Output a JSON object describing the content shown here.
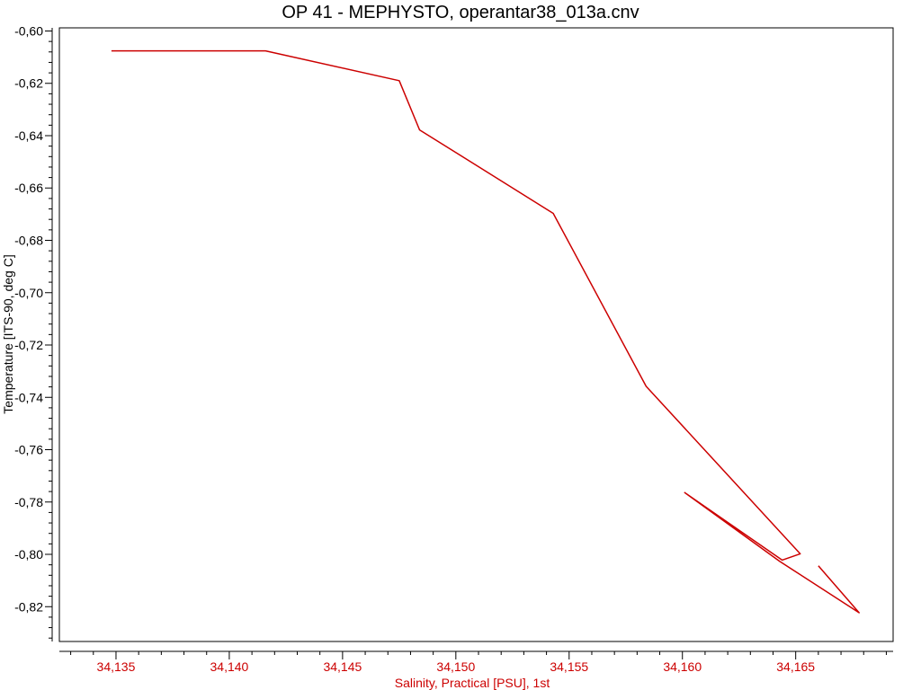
{
  "chart_data": {
    "type": "line",
    "title": "OP 41 - MEPHYSTO, operantar38_013a.cnv",
    "xlabel": "Salinity, Practical [PSU], 1st",
    "ylabel": "Temperature [ITS-90, deg C]",
    "xlim": [
      34.1325,
      34.1693
    ],
    "ylim": [
      -0.8333,
      -0.5988
    ],
    "x_ticks": [
      34.135,
      34.14,
      34.145,
      34.15,
      34.155,
      34.16,
      34.165
    ],
    "x_tick_labels": [
      "34,135",
      "34,140",
      "34,145",
      "34,150",
      "34,155",
      "34,160",
      "34,165"
    ],
    "y_ticks": [
      -0.6,
      -0.62,
      -0.64,
      -0.66,
      -0.68,
      -0.7,
      -0.72,
      -0.74,
      -0.76,
      -0.78,
      -0.8,
      -0.82
    ],
    "y_tick_labels": [
      "-0,60",
      "-0,62",
      "-0,64",
      "-0,66",
      "-0,68",
      "-0,70",
      "-0,72",
      "-0,74",
      "-0,76",
      "-0,78",
      "-0,80",
      "-0,82"
    ],
    "grid": false,
    "series": [
      {
        "color": "#cc0000",
        "x": [
          34.1348,
          34.1416,
          34.1475,
          34.1484,
          34.1543,
          34.1584,
          34.1652,
          34.1644,
          34.1601,
          34.1643,
          34.1678,
          34.166
        ],
        "y": [
          -0.6076,
          -0.6076,
          -0.619,
          -0.6378,
          -0.6697,
          -0.7358,
          -0.7998,
          -0.8022,
          -0.7764,
          -0.8027,
          -0.8223,
          -0.8044
        ]
      }
    ],
    "colors": {
      "axis": "#000000",
      "x_axis_text": "#cc0000",
      "y_axis_text": "#000000"
    }
  }
}
